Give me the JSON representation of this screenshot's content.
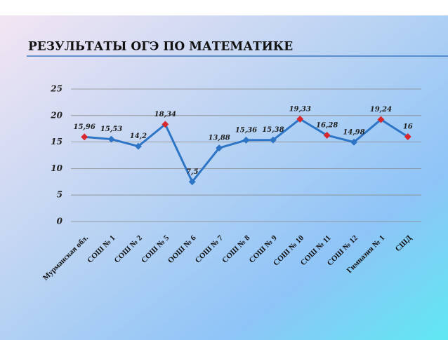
{
  "chart_data": {
    "type": "line",
    "title": "РЕЗУЛЬТАТЫ ОГЭ ПО МАТЕМАТИКЕ",
    "categories": [
      "Мурманская обл.",
      "СОШ № 1",
      "СОШ № 2",
      "СОШ № 5",
      "ООШ № 6",
      "СОШ № 7",
      "СОШ № 8",
      "СОШ № 9",
      "СОШ № 10",
      "СОШ № 11",
      "СОШ № 12",
      "Гимназия № 1",
      "СШД"
    ],
    "values": [
      15.96,
      15.53,
      14.2,
      18.34,
      7.5,
      13.88,
      15.36,
      15.38,
      19.33,
      16.28,
      14.98,
      19.24,
      16
    ],
    "value_labels": [
      "15,96",
      "15,53",
      "14,2",
      "18,34",
      "7,5",
      "13,88",
      "15,36",
      "15,38",
      "19,33",
      "16,28",
      "14,98",
      "19,24",
      "16"
    ],
    "color": "#2e75c6",
    "marker_colors": [
      "#d9272e",
      "#2e75c6",
      "#2e75c6",
      "#d9272e",
      "#2e75c6",
      "#2e75c6",
      "#2e75c6",
      "#2e75c6",
      "#d9272e",
      "#d9272e",
      "#2e75c6",
      "#d9272e",
      "#d9272e"
    ],
    "ylim": [
      0,
      25
    ],
    "yticks": [
      0,
      5,
      10,
      15,
      20,
      25
    ],
    "grid": true
  }
}
